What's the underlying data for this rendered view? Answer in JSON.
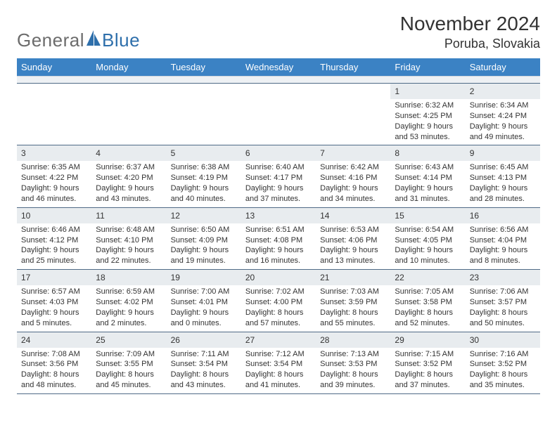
{
  "logo": {
    "text_gray": "General",
    "text_blue": "Blue"
  },
  "title": "November 2024",
  "location": "Poruba, Slovakia",
  "header_bg": "#3b82c4",
  "header_text_color": "#ffffff",
  "daybar_bg": "#e8ecef",
  "body_text_color": "#333333",
  "row_border_color": "#4f6a86",
  "weekdays": [
    "Sunday",
    "Monday",
    "Tuesday",
    "Wednesday",
    "Thursday",
    "Friday",
    "Saturday"
  ],
  "weeks": [
    [
      null,
      null,
      null,
      null,
      null,
      {
        "n": "1",
        "sr": "Sunrise: 6:32 AM",
        "ss": "Sunset: 4:25 PM",
        "d1": "Daylight: 9 hours",
        "d2": "and 53 minutes."
      },
      {
        "n": "2",
        "sr": "Sunrise: 6:34 AM",
        "ss": "Sunset: 4:24 PM",
        "d1": "Daylight: 9 hours",
        "d2": "and 49 minutes."
      }
    ],
    [
      {
        "n": "3",
        "sr": "Sunrise: 6:35 AM",
        "ss": "Sunset: 4:22 PM",
        "d1": "Daylight: 9 hours",
        "d2": "and 46 minutes."
      },
      {
        "n": "4",
        "sr": "Sunrise: 6:37 AM",
        "ss": "Sunset: 4:20 PM",
        "d1": "Daylight: 9 hours",
        "d2": "and 43 minutes."
      },
      {
        "n": "5",
        "sr": "Sunrise: 6:38 AM",
        "ss": "Sunset: 4:19 PM",
        "d1": "Daylight: 9 hours",
        "d2": "and 40 minutes."
      },
      {
        "n": "6",
        "sr": "Sunrise: 6:40 AM",
        "ss": "Sunset: 4:17 PM",
        "d1": "Daylight: 9 hours",
        "d2": "and 37 minutes."
      },
      {
        "n": "7",
        "sr": "Sunrise: 6:42 AM",
        "ss": "Sunset: 4:16 PM",
        "d1": "Daylight: 9 hours",
        "d2": "and 34 minutes."
      },
      {
        "n": "8",
        "sr": "Sunrise: 6:43 AM",
        "ss": "Sunset: 4:14 PM",
        "d1": "Daylight: 9 hours",
        "d2": "and 31 minutes."
      },
      {
        "n": "9",
        "sr": "Sunrise: 6:45 AM",
        "ss": "Sunset: 4:13 PM",
        "d1": "Daylight: 9 hours",
        "d2": "and 28 minutes."
      }
    ],
    [
      {
        "n": "10",
        "sr": "Sunrise: 6:46 AM",
        "ss": "Sunset: 4:12 PM",
        "d1": "Daylight: 9 hours",
        "d2": "and 25 minutes."
      },
      {
        "n": "11",
        "sr": "Sunrise: 6:48 AM",
        "ss": "Sunset: 4:10 PM",
        "d1": "Daylight: 9 hours",
        "d2": "and 22 minutes."
      },
      {
        "n": "12",
        "sr": "Sunrise: 6:50 AM",
        "ss": "Sunset: 4:09 PM",
        "d1": "Daylight: 9 hours",
        "d2": "and 19 minutes."
      },
      {
        "n": "13",
        "sr": "Sunrise: 6:51 AM",
        "ss": "Sunset: 4:08 PM",
        "d1": "Daylight: 9 hours",
        "d2": "and 16 minutes."
      },
      {
        "n": "14",
        "sr": "Sunrise: 6:53 AM",
        "ss": "Sunset: 4:06 PM",
        "d1": "Daylight: 9 hours",
        "d2": "and 13 minutes."
      },
      {
        "n": "15",
        "sr": "Sunrise: 6:54 AM",
        "ss": "Sunset: 4:05 PM",
        "d1": "Daylight: 9 hours",
        "d2": "and 10 minutes."
      },
      {
        "n": "16",
        "sr": "Sunrise: 6:56 AM",
        "ss": "Sunset: 4:04 PM",
        "d1": "Daylight: 9 hours",
        "d2": "and 8 minutes."
      }
    ],
    [
      {
        "n": "17",
        "sr": "Sunrise: 6:57 AM",
        "ss": "Sunset: 4:03 PM",
        "d1": "Daylight: 9 hours",
        "d2": "and 5 minutes."
      },
      {
        "n": "18",
        "sr": "Sunrise: 6:59 AM",
        "ss": "Sunset: 4:02 PM",
        "d1": "Daylight: 9 hours",
        "d2": "and 2 minutes."
      },
      {
        "n": "19",
        "sr": "Sunrise: 7:00 AM",
        "ss": "Sunset: 4:01 PM",
        "d1": "Daylight: 9 hours",
        "d2": "and 0 minutes."
      },
      {
        "n": "20",
        "sr": "Sunrise: 7:02 AM",
        "ss": "Sunset: 4:00 PM",
        "d1": "Daylight: 8 hours",
        "d2": "and 57 minutes."
      },
      {
        "n": "21",
        "sr": "Sunrise: 7:03 AM",
        "ss": "Sunset: 3:59 PM",
        "d1": "Daylight: 8 hours",
        "d2": "and 55 minutes."
      },
      {
        "n": "22",
        "sr": "Sunrise: 7:05 AM",
        "ss": "Sunset: 3:58 PM",
        "d1": "Daylight: 8 hours",
        "d2": "and 52 minutes."
      },
      {
        "n": "23",
        "sr": "Sunrise: 7:06 AM",
        "ss": "Sunset: 3:57 PM",
        "d1": "Daylight: 8 hours",
        "d2": "and 50 minutes."
      }
    ],
    [
      {
        "n": "24",
        "sr": "Sunrise: 7:08 AM",
        "ss": "Sunset: 3:56 PM",
        "d1": "Daylight: 8 hours",
        "d2": "and 48 minutes."
      },
      {
        "n": "25",
        "sr": "Sunrise: 7:09 AM",
        "ss": "Sunset: 3:55 PM",
        "d1": "Daylight: 8 hours",
        "d2": "and 45 minutes."
      },
      {
        "n": "26",
        "sr": "Sunrise: 7:11 AM",
        "ss": "Sunset: 3:54 PM",
        "d1": "Daylight: 8 hours",
        "d2": "and 43 minutes."
      },
      {
        "n": "27",
        "sr": "Sunrise: 7:12 AM",
        "ss": "Sunset: 3:54 PM",
        "d1": "Daylight: 8 hours",
        "d2": "and 41 minutes."
      },
      {
        "n": "28",
        "sr": "Sunrise: 7:13 AM",
        "ss": "Sunset: 3:53 PM",
        "d1": "Daylight: 8 hours",
        "d2": "and 39 minutes."
      },
      {
        "n": "29",
        "sr": "Sunrise: 7:15 AM",
        "ss": "Sunset: 3:52 PM",
        "d1": "Daylight: 8 hours",
        "d2": "and 37 minutes."
      },
      {
        "n": "30",
        "sr": "Sunrise: 7:16 AM",
        "ss": "Sunset: 3:52 PM",
        "d1": "Daylight: 8 hours",
        "d2": "and 35 minutes."
      }
    ]
  ]
}
